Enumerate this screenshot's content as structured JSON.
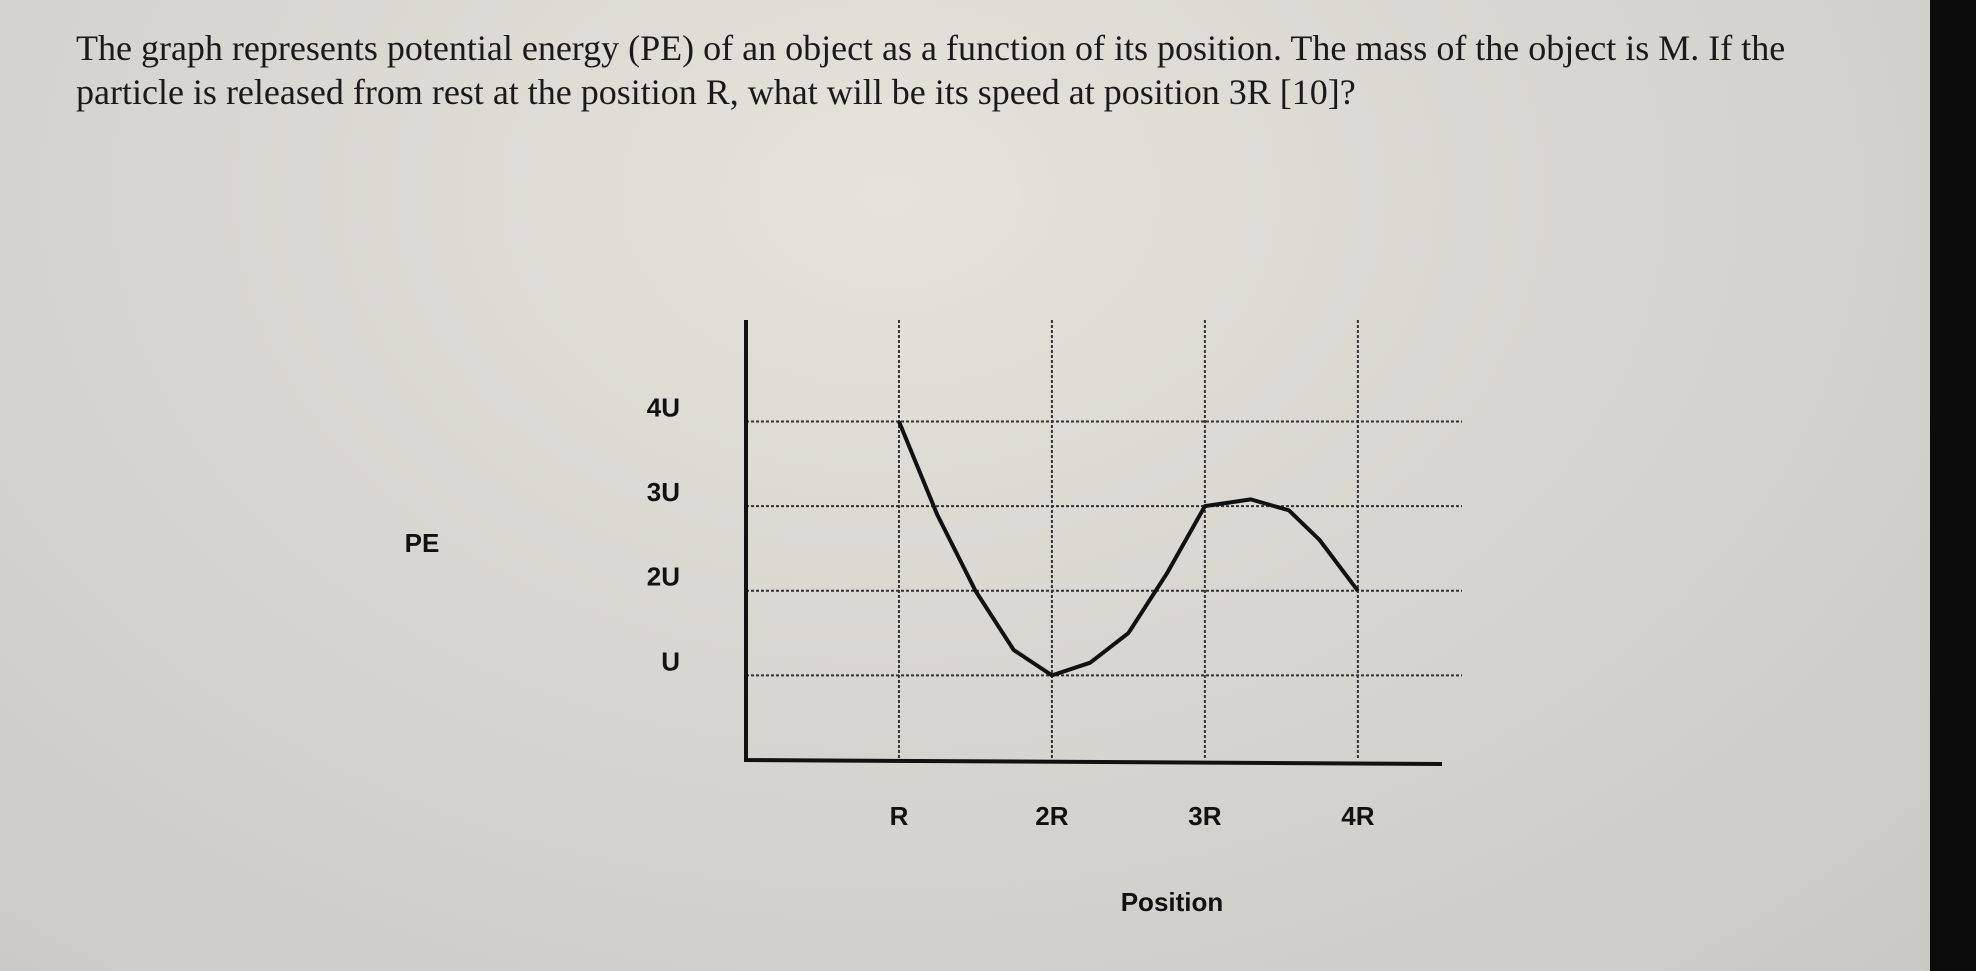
{
  "question": "The graph represents potential energy (PE) of an object as a function of its position. The mass of the object is M. If the particle is released from rest at the position R, what will be its speed at position 3R [10]?",
  "chart_data": {
    "type": "line",
    "x_label": "Position",
    "y_label": "PE",
    "x": [
      1,
      1.25,
      1.5,
      1.75,
      2,
      2.25,
      2.5,
      2.75,
      3,
      3.3,
      3.55,
      3.75,
      4
    ],
    "series": [
      {
        "color": "#111111",
        "values": [
          4,
          2.9,
          2.0,
          1.3,
          1.0,
          1.15,
          1.5,
          2.2,
          3.0,
          3.08,
          2.95,
          2.6,
          2.0
        ]
      }
    ],
    "xlim": [
      0,
      4.55
    ],
    "ylim": [
      0,
      5.2
    ],
    "xticks": [
      {
        "value": 1,
        "label": "R"
      },
      {
        "value": 2,
        "label": "2R"
      },
      {
        "value": 3,
        "label": "3R"
      },
      {
        "value": 4,
        "label": "4R"
      }
    ],
    "yticks": [
      {
        "value": 1,
        "label": "U"
      },
      {
        "value": 2,
        "label": "2U"
      },
      {
        "value": 3,
        "label": "3U"
      },
      {
        "value": 4,
        "label": "4U"
      }
    ],
    "grid": true
  }
}
